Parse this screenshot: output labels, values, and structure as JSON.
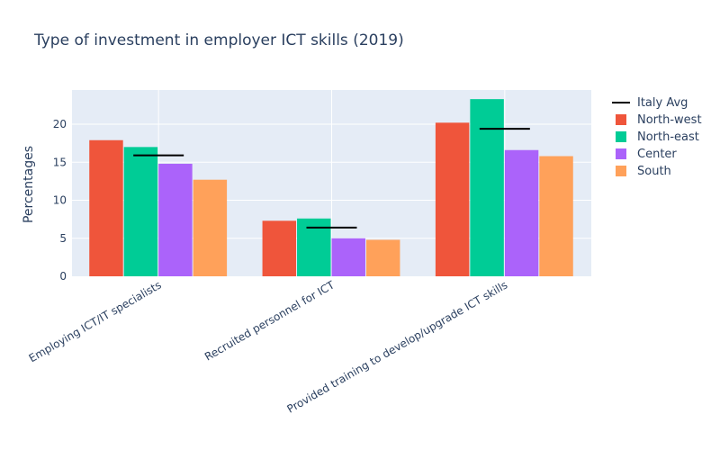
{
  "chart_data": {
    "type": "bar",
    "title": "Type of investment in employer ICT skills (2019)",
    "xlabel": "",
    "ylabel": "Percentages",
    "categories": [
      "Employing ICT/IT specialists",
      "Recruited personnel for ICT",
      "Provided training to develop/upgrade ICT skills"
    ],
    "series": [
      {
        "name": "North-west",
        "color": "#EF553B",
        "values": [
          17.9,
          7.3,
          20.2
        ]
      },
      {
        "name": "North-east",
        "color": "#00CC96",
        "values": [
          17.0,
          7.6,
          23.3
        ]
      },
      {
        "name": "Center",
        "color": "#AB63FA",
        "values": [
          14.8,
          5.0,
          16.6
        ]
      },
      {
        "name": "South",
        "color": "#FFA15A",
        "values": [
          12.7,
          4.8,
          15.8
        ]
      }
    ],
    "reference_line": {
      "name": "Italy Avg",
      "color": "#000000",
      "values": [
        15.9,
        6.4,
        19.4
      ]
    },
    "ylim": [
      0,
      24.5
    ],
    "yticks": [
      0,
      5,
      10,
      15,
      20
    ],
    "grid": true,
    "legend_position": "top-right"
  }
}
